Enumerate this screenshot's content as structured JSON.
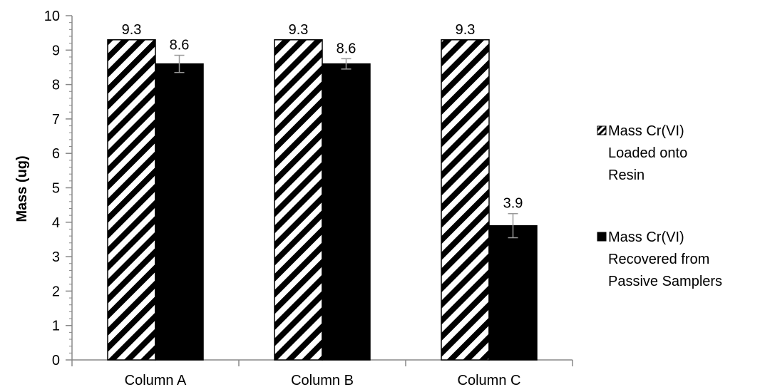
{
  "chart_data": {
    "type": "bar",
    "title": "",
    "xlabel": "",
    "ylabel": "Mass (ug)",
    "ylim": [
      0,
      10
    ],
    "yticks": [
      0,
      1,
      2,
      3,
      4,
      5,
      6,
      7,
      8,
      9,
      10
    ],
    "grid": false,
    "legend_position": "right",
    "categories": [
      "Column A",
      "Column B",
      "Column C"
    ],
    "series": [
      {
        "name": "Mass Cr(VI) Loaded onto Resin",
        "legend_lines": [
          "Mass Cr(VI)",
          "Loaded onto",
          "Resin"
        ],
        "pattern": "diagonal-stripes",
        "color": "#000000",
        "values": [
          9.3,
          9.3,
          9.3
        ],
        "labels": [
          "9.3",
          "9.3",
          "9.3"
        ]
      },
      {
        "name": "Mass Cr(VI) Recovered from Passive Samplers",
        "legend_lines": [
          "Mass Cr(VI)",
          "Recovered from",
          "Passive Samplers"
        ],
        "pattern": "solid",
        "color": "#000000",
        "values": [
          8.6,
          8.6,
          3.9
        ],
        "labels": [
          "8.6",
          "8.6",
          "3.9"
        ],
        "error": [
          0.25,
          0.15,
          0.35
        ]
      }
    ]
  }
}
